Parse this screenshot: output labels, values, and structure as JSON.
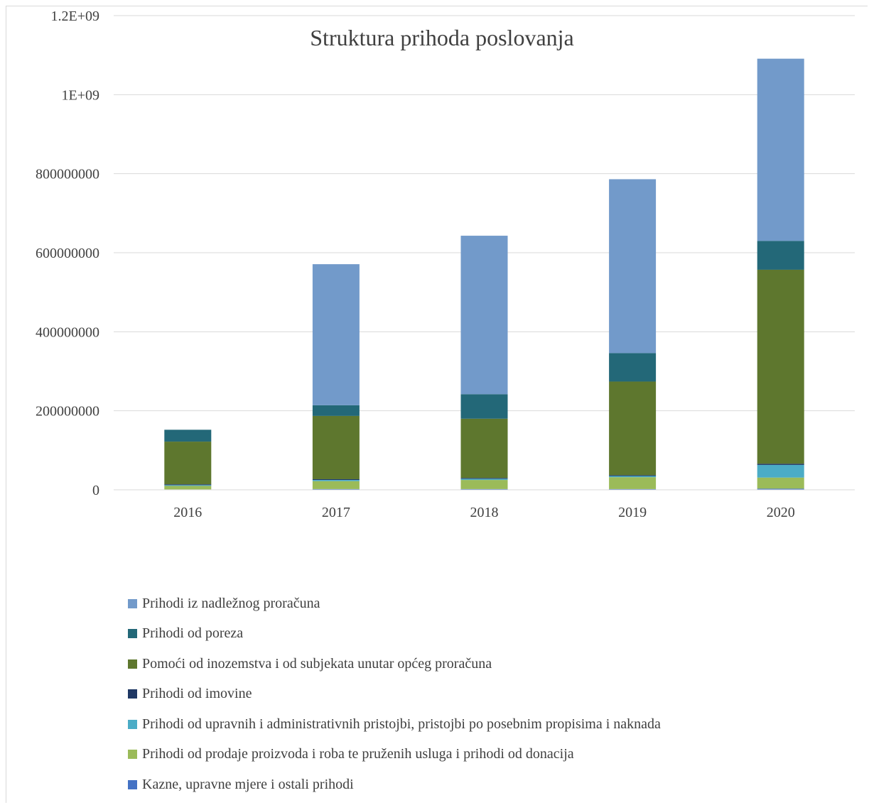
{
  "chart_data": {
    "type": "bar",
    "stacked": true,
    "title": "Struktura prihoda poslovanja",
    "categories": [
      "2016",
      "2017",
      "2018",
      "2019",
      "2020"
    ],
    "ylim": [
      0,
      1200000000
    ],
    "yticks": [
      {
        "value": 0,
        "label": "0"
      },
      {
        "value": 200000000,
        "label": "200000000"
      },
      {
        "value": 400000000,
        "label": "400000000"
      },
      {
        "value": 600000000,
        "label": "600000000"
      },
      {
        "value": 800000000,
        "label": "800000000"
      },
      {
        "value": 1000000000,
        "label": "1E+09"
      },
      {
        "value": 1200000000,
        "label": "1.2E+09"
      }
    ],
    "grid": true,
    "legend_position": "bottom",
    "series": [
      {
        "name": "Kazne, upravne mjere i ostali prihodi",
        "color": "#4472c4",
        "values": [
          1000000,
          2000000,
          2000000,
          2000000,
          3000000
        ]
      },
      {
        "name": "Prihodi od prodaje proizvoda i roba te pruženih usluga i prihodi od donacija",
        "color": "#9bbb59",
        "values": [
          9000000,
          20000000,
          23000000,
          30000000,
          28000000
        ]
      },
      {
        "name": "Prihodi od upravnih i administrativnih pristojbi, pristojbi po posebnim propisima i naknada",
        "color": "#4bacc6",
        "values": [
          2000000,
          3000000,
          3000000,
          3000000,
          32000000
        ]
      },
      {
        "name": "Prihodi od imovine",
        "color": "#1f3864",
        "values": [
          2000000,
          2000000,
          2000000,
          2000000,
          3000000
        ]
      },
      {
        "name": "Pomoći od inozemstva i od subjekata unutar općeg proračuna",
        "color": "#5e772e",
        "values": [
          108000000,
          160000000,
          150000000,
          237000000,
          491000000
        ]
      },
      {
        "name": "Prihodi od poreza",
        "color": "#236878",
        "values": [
          30000000,
          27000000,
          62000000,
          72000000,
          73000000
        ]
      },
      {
        "name": "Prihodi iz nadležnog proračuna",
        "color": "#729aca",
        "values": [
          0,
          357000000,
          401000000,
          440000000,
          461000000
        ]
      }
    ]
  },
  "legend": {
    "items": [
      {
        "label": "Prihodi iz nadležnog proračuna",
        "color": "#729aca"
      },
      {
        "label": "Prihodi od poreza",
        "color": "#236878"
      },
      {
        "label": "Pomoći od inozemstva i od subjekata unutar općeg proračuna",
        "color": "#5e772e"
      },
      {
        "label": "Prihodi od imovine",
        "color": "#1f3864"
      },
      {
        "label": "Prihodi od upravnih i administrativnih pristojbi, pristojbi po posebnim propisima i naknada",
        "color": "#4bacc6"
      },
      {
        "label": "Prihodi od prodaje proizvoda i roba te pruženih usluga i prihodi od donacija",
        "color": "#9bbb59"
      },
      {
        "label": "Kazne, upravne mjere i ostali prihodi",
        "color": "#4472c4"
      }
    ]
  }
}
